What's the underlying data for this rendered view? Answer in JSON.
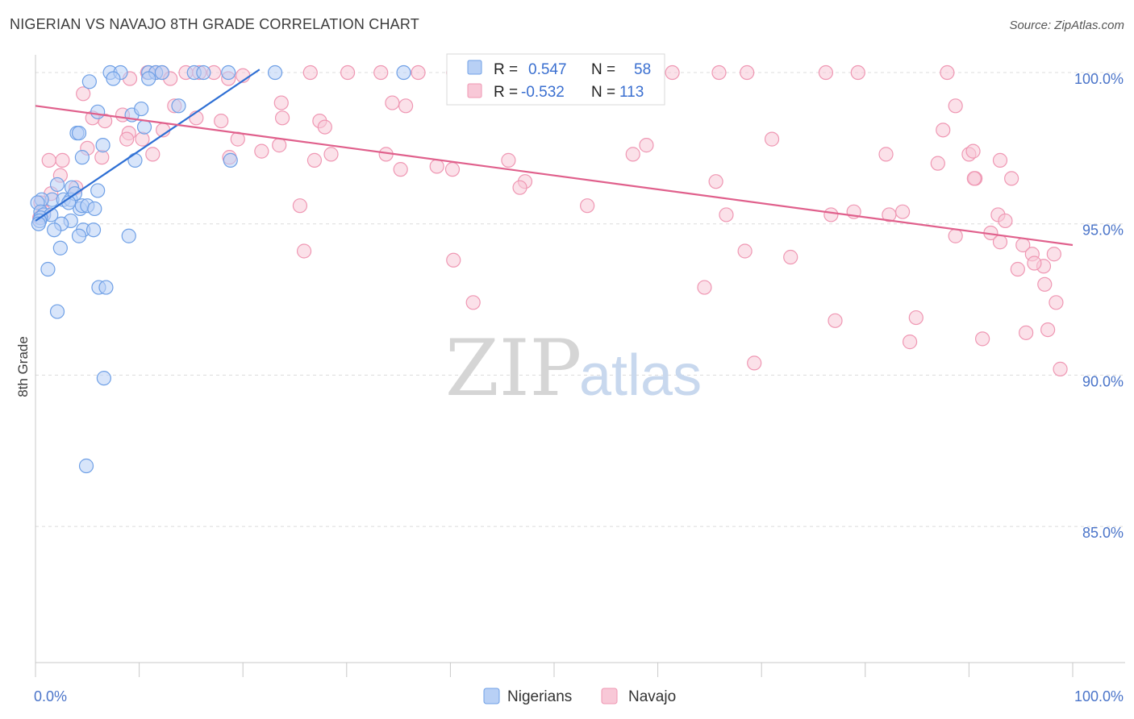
{
  "title": "NIGERIAN VS NAVAJO 8TH GRADE CORRELATION CHART",
  "source": "Source: ZipAtlas.com",
  "watermark": {
    "part1": "ZIP",
    "part2": "atlas"
  },
  "colors": {
    "nigerians": "#6fa0e6",
    "nigerians_fill": "#b8d0f5",
    "nigerians_line": "#2e6fd4",
    "navajo": "#ef97b3",
    "navajo_fill": "#f8c8d7",
    "navajo_line": "#e0608c",
    "grid": "#dcdcdc",
    "tick_label": "#4a74c9"
  },
  "stats": {
    "r_label": "R =",
    "n_label": "N =",
    "rows": [
      {
        "series": "Nigerians",
        "r": "0.547",
        "n": "58"
      },
      {
        "series": "Navajo",
        "r": "-0.532",
        "n": "113"
      }
    ]
  },
  "chart_data": {
    "type": "scatter",
    "title": "NIGERIAN VS NAVAJO 8TH GRADE CORRELATION CHART",
    "xlabel": "",
    "ylabel": "8th Grade",
    "xlim": [
      0,
      100
    ],
    "ylim": [
      80.5,
      100.8
    ],
    "x_tick_labels": [
      "0.0%",
      "100.0%"
    ],
    "y_ticks": [
      85,
      90,
      95,
      100
    ],
    "y_tick_labels": [
      "85.0%",
      "90.0%",
      "95.0%",
      "100.0%"
    ],
    "grid": true,
    "legend_position": "bottom-center",
    "legend": [
      "Nigerians",
      "Navajo"
    ],
    "series": [
      {
        "name": "Nigerians",
        "trend": {
          "x": [
            0.0,
            21.6
          ],
          "y": [
            95.1,
            100.1
          ]
        },
        "points": [
          [
            7.2,
            100.0
          ],
          [
            8.2,
            100.0
          ],
          [
            10.9,
            100.0
          ],
          [
            11.6,
            100.0
          ],
          [
            12.2,
            100.0
          ],
          [
            15.3,
            100.0
          ],
          [
            16.2,
            100.0
          ],
          [
            18.6,
            100.0
          ],
          [
            23.1,
            100.0
          ],
          [
            35.5,
            100.0
          ],
          [
            5.2,
            99.7
          ],
          [
            7.5,
            99.8
          ],
          [
            10.9,
            99.8
          ],
          [
            13.8,
            98.9
          ],
          [
            6.0,
            98.7
          ],
          [
            9.3,
            98.6
          ],
          [
            10.2,
            98.8
          ],
          [
            4.0,
            98.0
          ],
          [
            4.2,
            98.0
          ],
          [
            6.5,
            97.6
          ],
          [
            10.5,
            98.2
          ],
          [
            4.5,
            97.2
          ],
          [
            9.6,
            97.1
          ],
          [
            18.8,
            97.1
          ],
          [
            2.1,
            96.3
          ],
          [
            3.5,
            96.2
          ],
          [
            6.0,
            96.1
          ],
          [
            1.6,
            95.8
          ],
          [
            2.7,
            95.8
          ],
          [
            3.4,
            95.8
          ],
          [
            3.8,
            96.0
          ],
          [
            0.6,
            95.8
          ],
          [
            0.2,
            95.7
          ],
          [
            4.3,
            95.5
          ],
          [
            4.5,
            95.6
          ],
          [
            5.0,
            95.6
          ],
          [
            5.7,
            95.5
          ],
          [
            0.5,
            95.4
          ],
          [
            0.8,
            95.3
          ],
          [
            1.5,
            95.3
          ],
          [
            0.5,
            95.2
          ],
          [
            0.4,
            95.1
          ],
          [
            0.3,
            95.0
          ],
          [
            3.4,
            95.1
          ],
          [
            2.5,
            95.0
          ],
          [
            1.8,
            94.8
          ],
          [
            4.6,
            94.8
          ],
          [
            5.6,
            94.8
          ],
          [
            4.2,
            94.6
          ],
          [
            9.0,
            94.6
          ],
          [
            2.4,
            94.2
          ],
          [
            1.2,
            93.5
          ],
          [
            6.1,
            92.9
          ],
          [
            6.8,
            92.9
          ],
          [
            2.1,
            92.1
          ],
          [
            6.6,
            89.9
          ],
          [
            4.9,
            87.0
          ],
          [
            3.2,
            95.7
          ]
        ]
      },
      {
        "name": "Navajo",
        "trend": {
          "x": [
            0.0,
            100.0
          ],
          "y": [
            98.9,
            94.3
          ]
        },
        "points": [
          [
            10.8,
            100.0
          ],
          [
            11.6,
            100.0
          ],
          [
            12.2,
            100.0
          ],
          [
            14.5,
            100.0
          ],
          [
            15.8,
            100.0
          ],
          [
            17.2,
            100.0
          ],
          [
            26.5,
            100.0
          ],
          [
            30.1,
            100.0
          ],
          [
            33.3,
            100.0
          ],
          [
            36.9,
            100.0
          ],
          [
            40.3,
            100.0
          ],
          [
            45.3,
            100.0
          ],
          [
            48.8,
            100.0
          ],
          [
            54.4,
            100.0
          ],
          [
            61.4,
            100.0
          ],
          [
            65.9,
            100.0
          ],
          [
            68.6,
            100.0
          ],
          [
            76.2,
            100.0
          ],
          [
            79.3,
            100.0
          ],
          [
            87.9,
            100.0
          ],
          [
            13.0,
            99.8
          ],
          [
            9.1,
            99.8
          ],
          [
            18.6,
            99.8
          ],
          [
            20.0,
            99.9
          ],
          [
            23.7,
            99.0
          ],
          [
            34.4,
            99.0
          ],
          [
            35.7,
            98.9
          ],
          [
            4.6,
            99.3
          ],
          [
            6.7,
            98.4
          ],
          [
            13.4,
            98.9
          ],
          [
            5.5,
            98.5
          ],
          [
            17.9,
            98.4
          ],
          [
            23.8,
            98.5
          ],
          [
            27.4,
            98.4
          ],
          [
            8.4,
            98.6
          ],
          [
            12.3,
            98.1
          ],
          [
            9.0,
            98.0
          ],
          [
            15.5,
            98.5
          ],
          [
            21.8,
            97.4
          ],
          [
            27.9,
            98.2
          ],
          [
            8.8,
            97.8
          ],
          [
            10.3,
            97.8
          ],
          [
            5.0,
            97.5
          ],
          [
            2.6,
            97.1
          ],
          [
            1.3,
            97.1
          ],
          [
            6.4,
            97.2
          ],
          [
            11.3,
            97.3
          ],
          [
            18.7,
            97.2
          ],
          [
            19.5,
            97.8
          ],
          [
            23.5,
            97.6
          ],
          [
            26.9,
            97.1
          ],
          [
            28.5,
            97.3
          ],
          [
            33.8,
            97.3
          ],
          [
            38.7,
            96.9
          ],
          [
            35.2,
            96.8
          ],
          [
            40.2,
            96.8
          ],
          [
            45.6,
            97.1
          ],
          [
            47.2,
            96.4
          ],
          [
            57.6,
            97.3
          ],
          [
            58.9,
            97.6
          ],
          [
            71.0,
            97.8
          ],
          [
            82.0,
            97.3
          ],
          [
            87.5,
            98.1
          ],
          [
            88.7,
            98.9
          ],
          [
            87.0,
            97.0
          ],
          [
            90.0,
            97.3
          ],
          [
            90.4,
            97.4
          ],
          [
            90.6,
            96.5
          ],
          [
            94.1,
            96.5
          ],
          [
            93.0,
            97.1
          ],
          [
            2.4,
            96.6
          ],
          [
            3.9,
            96.2
          ],
          [
            1.5,
            96.0
          ],
          [
            0.5,
            95.7
          ],
          [
            0.4,
            95.2
          ],
          [
            0.8,
            95.4
          ],
          [
            46.7,
            96.2
          ],
          [
            53.2,
            95.6
          ],
          [
            65.6,
            96.4
          ],
          [
            66.6,
            95.3
          ],
          [
            76.7,
            95.3
          ],
          [
            78.9,
            95.4
          ],
          [
            82.3,
            95.3
          ],
          [
            83.6,
            95.4
          ],
          [
            90.5,
            96.5
          ],
          [
            92.8,
            95.3
          ],
          [
            93.5,
            95.1
          ],
          [
            92.1,
            94.7
          ],
          [
            93.0,
            94.4
          ],
          [
            95.2,
            94.3
          ],
          [
            96.1,
            94.0
          ],
          [
            97.2,
            93.6
          ],
          [
            98.2,
            94.0
          ],
          [
            96.3,
            93.7
          ],
          [
            94.7,
            93.5
          ],
          [
            97.3,
            93.0
          ],
          [
            98.4,
            92.4
          ],
          [
            25.5,
            95.6
          ],
          [
            25.9,
            94.1
          ],
          [
            40.3,
            93.8
          ],
          [
            42.2,
            92.4
          ],
          [
            64.5,
            92.9
          ],
          [
            68.4,
            94.1
          ],
          [
            72.8,
            93.9
          ],
          [
            88.7,
            94.6
          ],
          [
            69.3,
            90.4
          ],
          [
            77.1,
            91.8
          ],
          [
            84.9,
            91.9
          ],
          [
            84.3,
            91.1
          ],
          [
            91.3,
            91.2
          ],
          [
            95.5,
            91.4
          ],
          [
            97.6,
            91.5
          ],
          [
            98.8,
            90.2
          ]
        ]
      }
    ]
  },
  "legend_labels": {
    "nigerians": "Nigerians",
    "navajo": "Navajo"
  }
}
